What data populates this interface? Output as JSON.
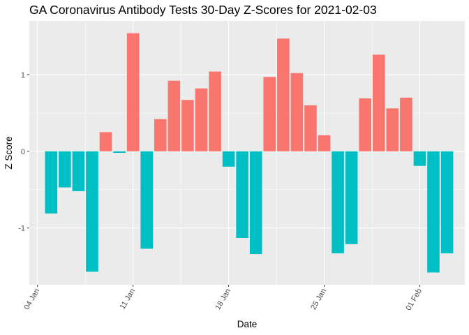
{
  "chart_data": {
    "type": "bar",
    "title": "GA Coronavirus Antibody Tests 30-Day Z-Scores for 2021-02-03",
    "xlabel": "Date",
    "ylabel": "Z Score",
    "x": [
      "2021-01-05",
      "2021-01-06",
      "2021-01-07",
      "2021-01-08",
      "2021-01-09",
      "2021-01-10",
      "2021-01-11",
      "2021-01-12",
      "2021-01-13",
      "2021-01-14",
      "2021-01-15",
      "2021-01-16",
      "2021-01-17",
      "2021-01-18",
      "2021-01-19",
      "2021-01-20",
      "2021-01-21",
      "2021-01-22",
      "2021-01-23",
      "2021-01-24",
      "2021-01-25",
      "2021-01-26",
      "2021-01-27",
      "2021-01-28",
      "2021-01-29",
      "2021-01-30",
      "2021-01-31",
      "2021-02-01",
      "2021-02-02",
      "2021-02-03"
    ],
    "values": [
      -0.81,
      -0.47,
      -0.52,
      -1.57,
      0.25,
      -0.02,
      1.54,
      -1.27,
      0.42,
      0.92,
      0.67,
      0.82,
      1.04,
      -0.2,
      -1.13,
      -1.34,
      0.97,
      1.47,
      1.02,
      0.6,
      0.21,
      -1.33,
      -1.21,
      0.69,
      1.26,
      0.56,
      0.7,
      -0.19,
      -1.58,
      -1.33
    ],
    "x_ticks": [
      {
        "date": "2021-01-04",
        "label": "04 Jan"
      },
      {
        "date": "2021-01-11",
        "label": "11 Jan"
      },
      {
        "date": "2021-01-18",
        "label": "18 Jan"
      },
      {
        "date": "2021-01-25",
        "label": "25 Jan"
      },
      {
        "date": "2021-02-01",
        "label": "01 Feb"
      }
    ],
    "y_ticks": [
      {
        "value": -1,
        "label": "-1"
      },
      {
        "value": 0,
        "label": "0"
      },
      {
        "value": 1,
        "label": "1"
      }
    ],
    "xlim": [
      "2021-01-03.4",
      "2021-02-04.3"
    ],
    "ylim": [
      -1.74,
      1.7
    ],
    "grid": true,
    "legend": "none",
    "colors": {
      "positive": "#F8766D",
      "negative": "#00BFC4",
      "panel": "#EBEBEB",
      "grid": "#FFFFFF"
    }
  }
}
